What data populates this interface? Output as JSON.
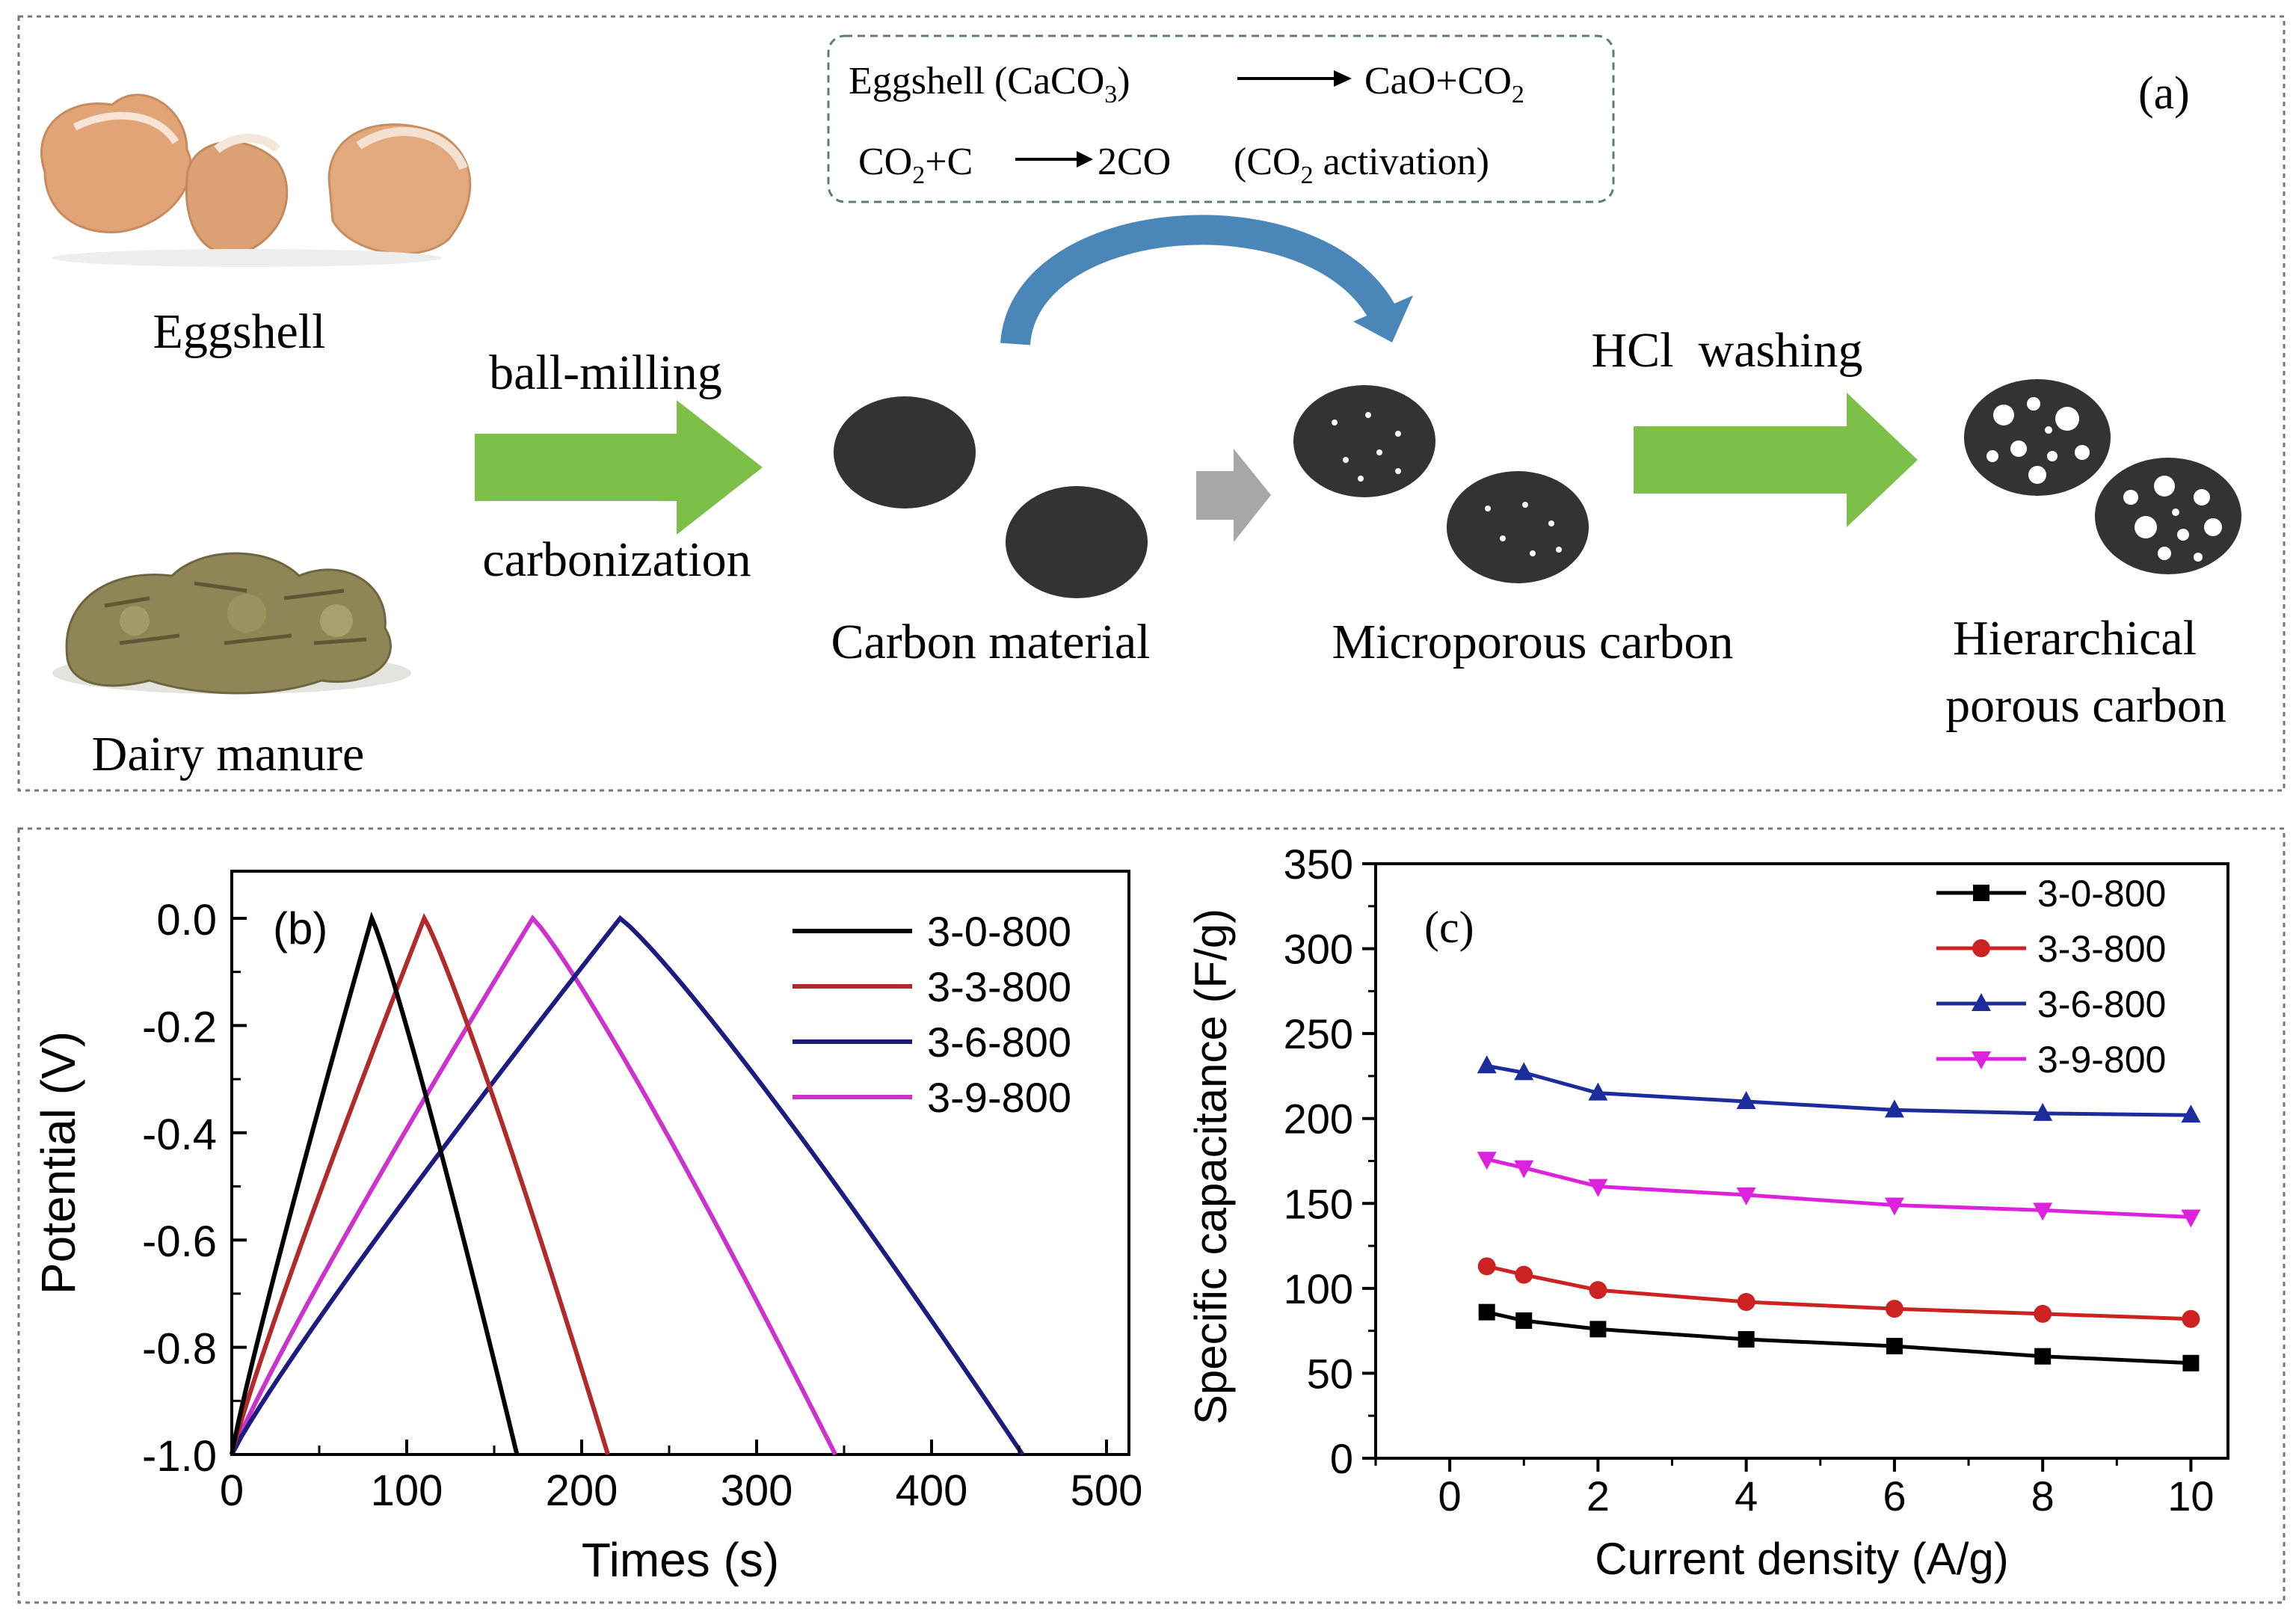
{
  "panel_a": {
    "label": "(a)",
    "reactions": {
      "line1": {
        "left": "Eggshell (CaCO",
        "left_sub": "3",
        "left_close": ")",
        "right": "CaO+CO",
        "right_sub": "2"
      },
      "line2": {
        "a": "CO",
        "a_sub": "2",
        "b": "+C",
        "c": "2CO",
        "d": "(CO",
        "d_sub": "2",
        "e": " activation)"
      }
    },
    "eggshell_label": "Eggshell",
    "manure_label": "Dairy manure",
    "step1_top": "ball-milling",
    "step1_bottom": "carbonization",
    "carbon_label": "Carbon material",
    "micro_label": "Microporous carbon",
    "step2_label": "HCl  washing",
    "hier_label_1": "Hierarchical",
    "hier_label_2": "porous carbon",
    "colors": {
      "green_arrow": "#7cc04a",
      "blue_arrow": "#4a86b8",
      "gray_arrow": "#a7a7a7",
      "particle": "#333333"
    }
  },
  "chart_data": [
    {
      "type": "line",
      "panel_label": "(b)",
      "xlabel": "Times (s)",
      "ylabel": "Potential (V)",
      "xlim": [
        0,
        500
      ],
      "ylim": [
        -1.0,
        0.1
      ],
      "xticks": [
        "0",
        "100",
        "200",
        "300",
        "400",
        "500"
      ],
      "yticks": [
        "0.0",
        "-0.2",
        "-0.4",
        "-0.6",
        "-0.8",
        "-1.0"
      ],
      "series": [
        {
          "name": "3-0-800",
          "color": "#000000",
          "peak_time": 80,
          "end_time": 163
        },
        {
          "name": "3-3-800",
          "color": "#b22a2a",
          "peak_time": 110,
          "end_time": 215
        },
        {
          "name": "3-6-800",
          "color": "#1c1c80",
          "peak_time": 222,
          "end_time": 452
        },
        {
          "name": "3-9-800",
          "color": "#cc33cc",
          "peak_time": 172,
          "end_time": 345
        }
      ]
    },
    {
      "type": "line",
      "panel_label": "(c)",
      "xlabel": "Current density (A/g)",
      "ylabel": "Specific capacitance (F/g)",
      "xlim": [
        -1,
        10.5
      ],
      "ylim": [
        0,
        350
      ],
      "xticks": [
        "0",
        "2",
        "4",
        "6",
        "8",
        "10"
      ],
      "yticks": [
        "0",
        "50",
        "100",
        "150",
        "200",
        "250",
        "300",
        "350"
      ],
      "x": [
        0.5,
        1,
        2,
        4,
        6,
        8,
        10
      ],
      "series": [
        {
          "name": "3-0-800",
          "color": "#000000",
          "marker": "square",
          "values": [
            86,
            81,
            76,
            70,
            66,
            60,
            56
          ]
        },
        {
          "name": "3-3-800",
          "color": "#cc2222",
          "marker": "circle",
          "values": [
            113,
            108,
            99,
            92,
            88,
            85,
            82
          ]
        },
        {
          "name": "3-6-800",
          "color": "#1c2c9c",
          "marker": "triangle-up",
          "values": [
            231,
            227,
            215,
            210,
            205,
            203,
            202
          ]
        },
        {
          "name": "3-9-800",
          "color": "#dd22dd",
          "marker": "triangle-down",
          "values": [
            176,
            171,
            160,
            155,
            149,
            146,
            142
          ]
        }
      ]
    }
  ]
}
